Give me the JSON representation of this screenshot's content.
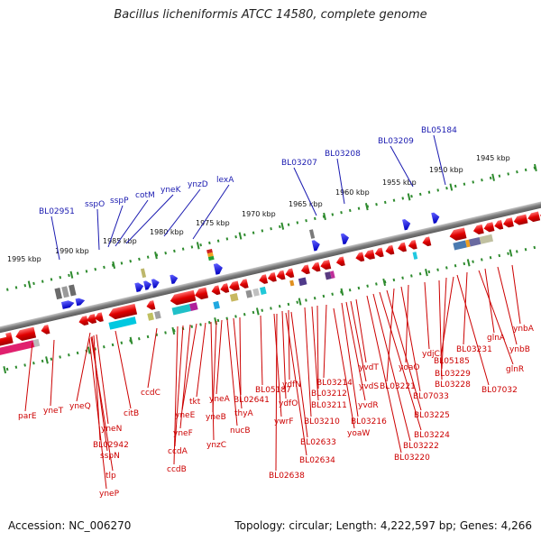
{
  "title": "Bacillus licheniformis ATCC 14580, complete genome",
  "accession": "Accession: NC_006270",
  "stats": "Topology: circular; Length: 4,222,597 bp; Genes: 4,266",
  "colors": {
    "forward_gene": "#1a1ab0",
    "reverse_gene": "#cc0000",
    "backbone": "#888888",
    "ticks": "#2e8b2e"
  },
  "scale_labels": [
    "1945 kbp",
    "1950 kbp",
    "1955 kbp",
    "1960 kbp",
    "1965 kbp",
    "1970 kbp",
    "1975 kbp",
    "1980 kbp",
    "1985 kbp",
    "1990 kbp",
    "1995 kbp"
  ],
  "blue_labels": [
    "BL05184",
    "BL03209",
    "BL03208",
    "BL03207",
    "lexA",
    "ynzD",
    "yneK",
    "cotM",
    "sspP",
    "sspO",
    "BL02951"
  ],
  "red_labels": [
    "ynbA",
    "ynbB",
    "glnA",
    "glnR",
    "BL03231",
    "BL07032",
    "BL05185",
    "BL03229",
    "BL03228",
    "ydjC",
    "yoaO",
    "BL07033",
    "BL03221",
    "BL03225",
    "BL03224",
    "BL03222",
    "BL03220",
    "yvdT",
    "yvdS",
    "yvdR",
    "BL03216",
    "BL03214",
    "BL03212",
    "BL03211",
    "BL03210",
    "yoaW",
    "ydfN",
    "ydfO",
    "BL02633",
    "BL02634",
    "BL02638",
    "ywrF",
    "BL05187",
    "BL02641",
    "thyA",
    "nucB",
    "yneA",
    "yneB",
    "ynzC",
    "tkt",
    "yneE",
    "yneF",
    "ccdA",
    "ccdB",
    "ccdC",
    "citB",
    "yneQ",
    "yneN",
    "BL02942",
    "sspN",
    "tlp",
    "yneP",
    "yneT",
    "parE"
  ]
}
